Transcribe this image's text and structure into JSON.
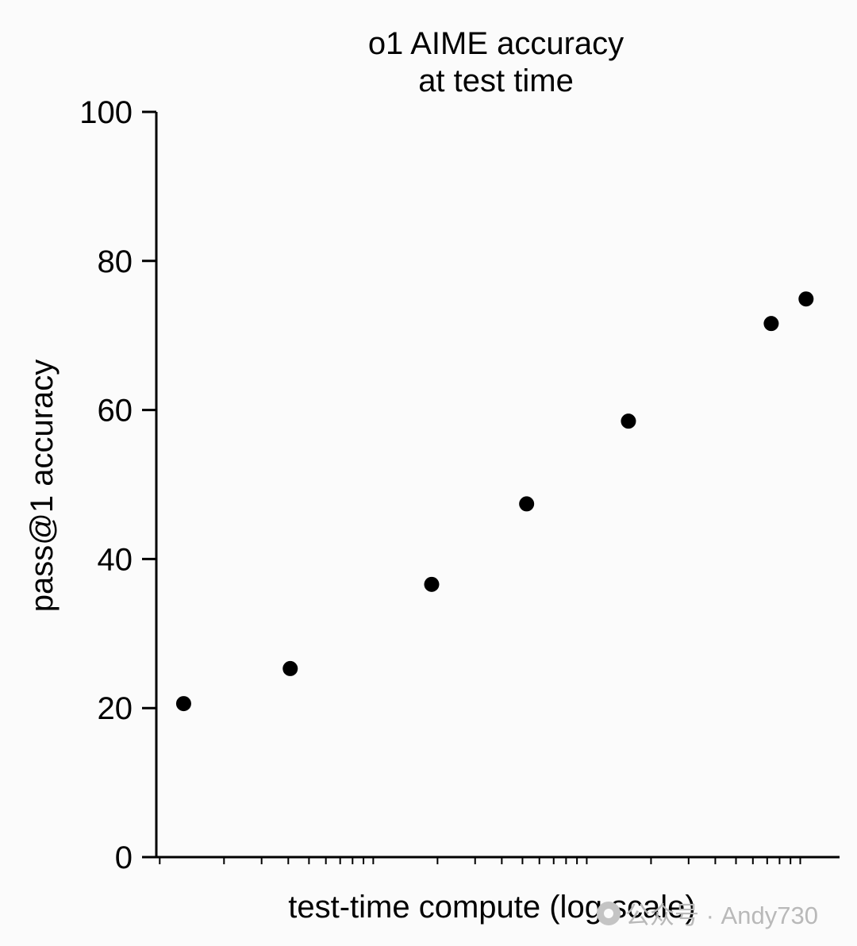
{
  "chart_data": {
    "type": "scatter",
    "title": [
      "o1 AIME accuracy",
      "at test time"
    ],
    "xlabel": "test-time compute (log scale)",
    "ylabel": "pass@1 accuracy",
    "ylim": [
      0,
      100
    ],
    "yticks": [
      0,
      20,
      40,
      60,
      80,
      100
    ],
    "x_scale": "log",
    "x_tick_labels": "none",
    "grid": false,
    "legend": "none",
    "series": [
      {
        "points": [
          {
            "x_rel": 0.04,
            "y": 20.6
          },
          {
            "x_rel": 0.196,
            "y": 25.3
          },
          {
            "x_rel": 0.403,
            "y": 36.6
          },
          {
            "x_rel": 0.542,
            "y": 47.4
          },
          {
            "x_rel": 0.691,
            "y": 58.5
          },
          {
            "x_rel": 0.9,
            "y": 71.6
          },
          {
            "x_rel": 0.951,
            "y": 74.9
          }
        ],
        "color": "#000000"
      }
    ],
    "colors": {
      "marker": "#000000",
      "axis": "#000000",
      "background": "#fbfbfb"
    }
  },
  "watermark": {
    "text": "公众号 · Andy730",
    "icon": "wechat-icon"
  }
}
